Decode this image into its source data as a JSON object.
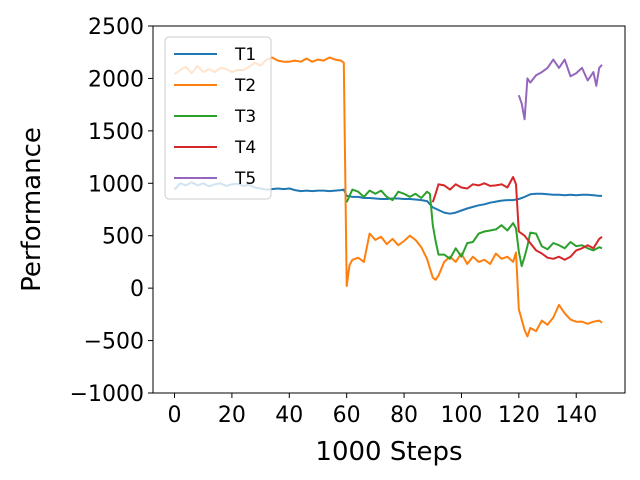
{
  "chart_data": {
    "type": "line",
    "title": "",
    "xlabel": "1000 Steps",
    "ylabel": "Performance",
    "xlim": [
      -7.5,
      157
    ],
    "ylim": [
      -1000,
      2500
    ],
    "xticks": [
      0,
      20,
      40,
      60,
      80,
      100,
      120,
      140
    ],
    "yticks": [
      -1000,
      -500,
      0,
      500,
      1000,
      1500,
      2000,
      2500
    ],
    "ytick_labels": [
      "−1000",
      "−500",
      "0",
      "500",
      "1000",
      "1500",
      "2000",
      "2500"
    ],
    "grid": false,
    "legend_position": "top-left",
    "series": [
      {
        "name": "T1",
        "color": "#1f77b4",
        "points": [
          [
            0,
            940
          ],
          [
            2,
            1000
          ],
          [
            4,
            980
          ],
          [
            6,
            1010
          ],
          [
            8,
            980
          ],
          [
            10,
            1000
          ],
          [
            12,
            970
          ],
          [
            14,
            990
          ],
          [
            16,
            1000
          ],
          [
            18,
            975
          ],
          [
            20,
            990
          ],
          [
            22,
            995
          ],
          [
            24,
            975
          ],
          [
            26,
            985
          ],
          [
            28,
            960
          ],
          [
            30,
            950
          ],
          [
            32,
            940
          ],
          [
            34,
            945
          ],
          [
            36,
            950
          ],
          [
            38,
            945
          ],
          [
            40,
            950
          ],
          [
            42,
            935
          ],
          [
            44,
            925
          ],
          [
            46,
            930
          ],
          [
            48,
            925
          ],
          [
            50,
            930
          ],
          [
            52,
            930
          ],
          [
            54,
            925
          ],
          [
            56,
            930
          ],
          [
            58,
            935
          ],
          [
            59,
            940
          ],
          [
            60,
            880
          ],
          [
            62,
            870
          ],
          [
            64,
            870
          ],
          [
            66,
            860
          ],
          [
            68,
            860
          ],
          [
            70,
            855
          ],
          [
            72,
            850
          ],
          [
            74,
            850
          ],
          [
            76,
            855
          ],
          [
            78,
            855
          ],
          [
            80,
            850
          ],
          [
            82,
            850
          ],
          [
            84,
            845
          ],
          [
            86,
            840
          ],
          [
            88,
            830
          ],
          [
            90,
            770
          ],
          [
            92,
            745
          ],
          [
            94,
            720
          ],
          [
            96,
            710
          ],
          [
            98,
            720
          ],
          [
            100,
            740
          ],
          [
            102,
            760
          ],
          [
            104,
            775
          ],
          [
            106,
            790
          ],
          [
            108,
            800
          ],
          [
            110,
            815
          ],
          [
            112,
            825
          ],
          [
            114,
            835
          ],
          [
            116,
            840
          ],
          [
            118,
            840
          ],
          [
            120,
            850
          ],
          [
            122,
            870
          ],
          [
            124,
            895
          ],
          [
            126,
            900
          ],
          [
            128,
            900
          ],
          [
            130,
            895
          ],
          [
            132,
            890
          ],
          [
            134,
            890
          ],
          [
            136,
            885
          ],
          [
            138,
            890
          ],
          [
            140,
            885
          ],
          [
            142,
            890
          ],
          [
            144,
            890
          ],
          [
            146,
            885
          ],
          [
            148,
            880
          ],
          [
            149,
            880
          ]
        ]
      },
      {
        "name": "T2",
        "color": "#ff7f0e",
        "points": [
          [
            0,
            2040
          ],
          [
            2,
            2080
          ],
          [
            4,
            2110
          ],
          [
            6,
            2050
          ],
          [
            8,
            2120
          ],
          [
            10,
            2060
          ],
          [
            12,
            2090
          ],
          [
            14,
            2060
          ],
          [
            16,
            2100
          ],
          [
            18,
            2090
          ],
          [
            20,
            2060
          ],
          [
            22,
            2080
          ],
          [
            24,
            2080
          ],
          [
            26,
            2110
          ],
          [
            28,
            2150
          ],
          [
            30,
            2120
          ],
          [
            32,
            2180
          ],
          [
            34,
            2200
          ],
          [
            36,
            2170
          ],
          [
            38,
            2160
          ],
          [
            40,
            2160
          ],
          [
            42,
            2170
          ],
          [
            44,
            2160
          ],
          [
            46,
            2190
          ],
          [
            48,
            2160
          ],
          [
            50,
            2180
          ],
          [
            52,
            2170
          ],
          [
            54,
            2200
          ],
          [
            56,
            2180
          ],
          [
            58,
            2170
          ],
          [
            59,
            2150
          ],
          [
            60,
            20
          ],
          [
            61,
            220
          ],
          [
            62,
            270
          ],
          [
            64,
            290
          ],
          [
            66,
            250
          ],
          [
            68,
            520
          ],
          [
            70,
            460
          ],
          [
            72,
            490
          ],
          [
            74,
            420
          ],
          [
            76,
            470
          ],
          [
            78,
            410
          ],
          [
            80,
            450
          ],
          [
            82,
            500
          ],
          [
            84,
            460
          ],
          [
            86,
            390
          ],
          [
            88,
            280
          ],
          [
            90,
            100
          ],
          [
            91,
            80
          ],
          [
            92,
            120
          ],
          [
            94,
            250
          ],
          [
            96,
            300
          ],
          [
            98,
            250
          ],
          [
            100,
            330
          ],
          [
            102,
            230
          ],
          [
            104,
            300
          ],
          [
            106,
            250
          ],
          [
            108,
            270
          ],
          [
            110,
            230
          ],
          [
            112,
            330
          ],
          [
            114,
            280
          ],
          [
            116,
            300
          ],
          [
            118,
            250
          ],
          [
            119,
            340
          ],
          [
            120,
            -200
          ],
          [
            121,
            -300
          ],
          [
            122,
            -400
          ],
          [
            123,
            -460
          ],
          [
            124,
            -380
          ],
          [
            126,
            -410
          ],
          [
            128,
            -310
          ],
          [
            130,
            -350
          ],
          [
            132,
            -280
          ],
          [
            134,
            -160
          ],
          [
            136,
            -240
          ],
          [
            138,
            -300
          ],
          [
            140,
            -320
          ],
          [
            142,
            -320
          ],
          [
            144,
            -340
          ],
          [
            146,
            -320
          ],
          [
            148,
            -310
          ],
          [
            149,
            -330
          ]
        ]
      },
      {
        "name": "T3",
        "color": "#2ca02c",
        "points": [
          [
            60,
            820
          ],
          [
            61,
            880
          ],
          [
            62,
            940
          ],
          [
            64,
            920
          ],
          [
            66,
            870
          ],
          [
            68,
            930
          ],
          [
            70,
            900
          ],
          [
            72,
            930
          ],
          [
            74,
            870
          ],
          [
            76,
            840
          ],
          [
            78,
            920
          ],
          [
            80,
            900
          ],
          [
            82,
            870
          ],
          [
            84,
            900
          ],
          [
            86,
            860
          ],
          [
            88,
            920
          ],
          [
            89,
            900
          ],
          [
            90,
            600
          ],
          [
            91,
            450
          ],
          [
            92,
            320
          ],
          [
            94,
            320
          ],
          [
            96,
            280
          ],
          [
            98,
            380
          ],
          [
            100,
            300
          ],
          [
            102,
            430
          ],
          [
            104,
            440
          ],
          [
            106,
            520
          ],
          [
            108,
            540
          ],
          [
            110,
            550
          ],
          [
            112,
            560
          ],
          [
            114,
            600
          ],
          [
            116,
            550
          ],
          [
            118,
            620
          ],
          [
            119,
            570
          ],
          [
            120,
            350
          ],
          [
            121,
            210
          ],
          [
            122,
            300
          ],
          [
            123,
            400
          ],
          [
            124,
            530
          ],
          [
            126,
            520
          ],
          [
            128,
            400
          ],
          [
            130,
            370
          ],
          [
            132,
            430
          ],
          [
            134,
            410
          ],
          [
            136,
            380
          ],
          [
            138,
            440
          ],
          [
            140,
            400
          ],
          [
            142,
            410
          ],
          [
            144,
            380
          ],
          [
            146,
            360
          ],
          [
            148,
            390
          ],
          [
            149,
            380
          ]
        ]
      },
      {
        "name": "T4",
        "color": "#d62728",
        "points": [
          [
            90,
            820
          ],
          [
            91,
            900
          ],
          [
            92,
            990
          ],
          [
            94,
            980
          ],
          [
            96,
            940
          ],
          [
            98,
            990
          ],
          [
            100,
            960
          ],
          [
            102,
            950
          ],
          [
            104,
            990
          ],
          [
            106,
            980
          ],
          [
            108,
            1000
          ],
          [
            110,
            975
          ],
          [
            112,
            980
          ],
          [
            114,
            990
          ],
          [
            116,
            960
          ],
          [
            118,
            1060
          ],
          [
            119,
            990
          ],
          [
            120,
            540
          ],
          [
            122,
            500
          ],
          [
            124,
            430
          ],
          [
            126,
            360
          ],
          [
            128,
            330
          ],
          [
            130,
            290
          ],
          [
            132,
            280
          ],
          [
            134,
            300
          ],
          [
            136,
            270
          ],
          [
            138,
            300
          ],
          [
            140,
            360
          ],
          [
            142,
            380
          ],
          [
            144,
            410
          ],
          [
            146,
            380
          ],
          [
            148,
            470
          ],
          [
            149,
            490
          ]
        ]
      },
      {
        "name": "T5",
        "color": "#9467bd",
        "points": [
          [
            120,
            1840
          ],
          [
            121,
            1760
          ],
          [
            122,
            1610
          ],
          [
            123,
            2000
          ],
          [
            124,
            1960
          ],
          [
            126,
            2030
          ],
          [
            128,
            2060
          ],
          [
            130,
            2100
          ],
          [
            132,
            2180
          ],
          [
            134,
            2100
          ],
          [
            136,
            2180
          ],
          [
            138,
            2020
          ],
          [
            140,
            2050
          ],
          [
            142,
            2100
          ],
          [
            144,
            1980
          ],
          [
            146,
            2060
          ],
          [
            147,
            1930
          ],
          [
            148,
            2100
          ],
          [
            149,
            2130
          ]
        ]
      }
    ]
  }
}
